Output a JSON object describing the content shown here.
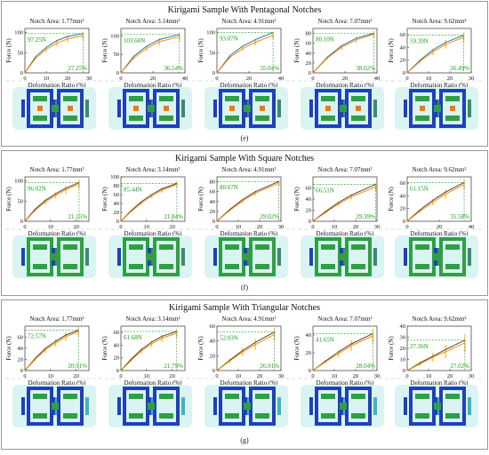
{
  "colors": {
    "line_model": "#1f77b4",
    "line_exp": "#ff8c00",
    "errorbar": "#ffbf47",
    "annotation": "#1a9e1a",
    "fem_bg": "#d9f4f2",
    "fem_green": "#2ea043",
    "fem_blue": "#1f3fbf",
    "fem_orange": "#f07a10",
    "fem_cyan": "#3bb6c2",
    "fem_teal": "#3a8c6e"
  },
  "common": {
    "xlabel": "Deformation Ratio (%)",
    "ylabel": "Force (N)"
  },
  "panels": [
    {
      "title": "Kirigami Sample With Pentagonal Notches",
      "label": "(e)"
    },
    {
      "title": "Kirigami Sample With Square Notches",
      "label": "(f)"
    },
    {
      "title": "Kirigami Sample With Triangular Notches",
      "label": "(g)"
    }
  ],
  "chart_data": [
    {
      "type": "line",
      "notch": "Notch Area: 1.77mm²",
      "force_label": "97.25N",
      "ratio_label": "27.25%",
      "xlim": [
        0,
        30
      ],
      "ylim": [
        0,
        110
      ],
      "xticks": [
        0,
        10,
        20,
        30
      ],
      "yticks": [
        0,
        50,
        100
      ],
      "x": [
        0,
        5,
        10,
        15,
        20,
        27.25
      ],
      "series": [
        {
          "values": [
            0,
            40,
            63,
            80,
            90,
            97.25
          ]
        },
        {
          "values": [
            0,
            36,
            58,
            74,
            84,
            92
          ]
        }
      ],
      "err": [
        0,
        3,
        6,
        8,
        9,
        10
      ],
      "diff_color": false,
      "fem": "pent1"
    },
    {
      "type": "line",
      "notch": "Notch Area: 3.14mm²",
      "force_label": "103.60N",
      "ratio_label": "36.54%",
      "xlim": [
        0,
        40
      ],
      "ylim": [
        0,
        120
      ],
      "xticks": [
        0,
        20,
        40
      ],
      "yticks": [
        0,
        50,
        100
      ],
      "x": [
        0,
        8,
        16,
        24,
        36.54
      ],
      "series": [
        {
          "values": [
            0,
            45,
            72,
            90,
            103.6
          ]
        },
        {
          "values": [
            0,
            40,
            66,
            84,
            98
          ]
        }
      ],
      "err": [
        0,
        4,
        7,
        9,
        11
      ],
      "diff_color": false,
      "fem": "pent2"
    },
    {
      "type": "line",
      "notch": "Notch Area: 4.91mm²",
      "force_label": "93.07N",
      "ratio_label": "35.04%",
      "xlim": [
        0,
        40
      ],
      "ylim": [
        0,
        110
      ],
      "xticks": [
        0,
        20,
        40
      ],
      "yticks": [
        0,
        50,
        100
      ],
      "x": [
        0,
        8,
        16,
        24,
        35.04
      ],
      "series": [
        {
          "values": [
            0,
            42,
            66,
            82,
            100
          ]
        },
        {
          "values": [
            0,
            38,
            60,
            76,
            93.07
          ]
        }
      ],
      "err": [
        0,
        3,
        6,
        8,
        9
      ],
      "diff_color": false,
      "fem": "pent3"
    },
    {
      "type": "line",
      "notch": "Notch Area: 7.07mm²",
      "force_label": "80.10N",
      "ratio_label": "38.02%",
      "xlim": [
        0,
        40
      ],
      "ylim": [
        0,
        90
      ],
      "xticks": [
        0,
        20,
        40
      ],
      "yticks": [
        0,
        20,
        40,
        60,
        80
      ],
      "x": [
        0,
        9,
        18,
        27,
        38.02
      ],
      "series": [
        {
          "values": [
            0,
            32,
            55,
            70,
            80.1
          ]
        },
        {
          "values": [
            0,
            30,
            52,
            67,
            78
          ]
        }
      ],
      "err": [
        0,
        3,
        5,
        6,
        7
      ],
      "diff_color": false,
      "fem": "pent4"
    },
    {
      "type": "line",
      "notch": "Notch Area: 9.62mm²",
      "force_label": "59.39N",
      "ratio_label": "26.49%",
      "xlim": [
        0,
        30
      ],
      "ylim": [
        0,
        70
      ],
      "xticks": [
        0,
        10,
        20,
        30
      ],
      "yticks": [
        0,
        20,
        40,
        60
      ],
      "x": [
        0,
        6,
        12,
        18,
        26.49
      ],
      "series": [
        {
          "values": [
            0,
            20,
            36,
            48,
            59.39
          ]
        },
        {
          "values": [
            0,
            18,
            33,
            45,
            56
          ]
        }
      ],
      "err": [
        0,
        3,
        5,
        7,
        8
      ],
      "diff_color": false,
      "fem": "pent5"
    },
    {
      "type": "line",
      "notch": "Notch Area: 1.77mm²",
      "force_label": "96.02N",
      "ratio_label": "21.15%",
      "xlim": [
        0,
        25
      ],
      "ylim": [
        0,
        110
      ],
      "xticks": [
        0,
        10,
        20
      ],
      "yticks": [
        0,
        50,
        100
      ],
      "x": [
        0,
        4,
        8,
        12,
        16,
        21.15
      ],
      "series": [
        {
          "values": [
            0,
            30,
            52,
            68,
            82,
            96.02
          ]
        },
        {
          "values": [
            0,
            27,
            48,
            64,
            78,
            92
          ]
        }
      ],
      "err": [
        0,
        3,
        6,
        8,
        10,
        11
      ],
      "diff_color": true,
      "fem": "sq1"
    },
    {
      "type": "line",
      "notch": "Notch Area: 3.14mm²",
      "force_label": "85.44N",
      "ratio_label": "21.84%",
      "xlim": [
        0,
        25
      ],
      "ylim": [
        0,
        100
      ],
      "xticks": [
        0,
        10,
        20
      ],
      "yticks": [
        0,
        20,
        40,
        60,
        80,
        100
      ],
      "x": [
        0,
        4,
        8,
        12,
        16,
        21.84
      ],
      "series": [
        {
          "values": [
            0,
            24,
            44,
            60,
            73,
            85.44
          ]
        },
        {
          "values": [
            0,
            22,
            41,
            57,
            70,
            83
          ]
        }
      ],
      "err": [
        0,
        2,
        4,
        5,
        6,
        7
      ],
      "diff_color": true,
      "fem": "sq2"
    },
    {
      "type": "line",
      "notch": "Notch Area: 4.91mm²",
      "force_label": "80.67N",
      "ratio_label": "29.02%",
      "xlim": [
        0,
        30
      ],
      "ylim": [
        0,
        90
      ],
      "xticks": [
        0,
        10,
        20,
        30
      ],
      "yticks": [
        0,
        20,
        40,
        60,
        80
      ],
      "x": [
        0,
        6,
        12,
        18,
        29.02
      ],
      "series": [
        {
          "values": [
            0,
            24,
            44,
            60,
            80.67
          ]
        },
        {
          "values": [
            0,
            22,
            41,
            57,
            77
          ]
        }
      ],
      "err": [
        0,
        2,
        4,
        5,
        6
      ],
      "diff_color": true,
      "fem": "sq3"
    },
    {
      "type": "line",
      "notch": "Notch Area: 7.07mm²",
      "force_label": "66.51N",
      "ratio_label": "29.39%",
      "xlim": [
        0,
        30
      ],
      "ylim": [
        0,
        80
      ],
      "xticks": [
        0,
        10,
        20,
        30
      ],
      "yticks": [
        0,
        20,
        40,
        60
      ],
      "x": [
        0,
        6,
        12,
        18,
        29.39
      ],
      "series": [
        {
          "values": [
            0,
            18,
            34,
            47,
            66.51
          ]
        },
        {
          "values": [
            0,
            16,
            31,
            44,
            62
          ]
        }
      ],
      "err": [
        0,
        2,
        4,
        5,
        7
      ],
      "diff_color": true,
      "fem": "sq4"
    },
    {
      "type": "line",
      "notch": "Notch Area: 9.62mm²",
      "force_label": "61.15N",
      "ratio_label": "35.58%",
      "xlim": [
        0,
        40
      ],
      "ylim": [
        0,
        70
      ],
      "xticks": [
        0,
        20,
        40
      ],
      "yticks": [
        0,
        20,
        40,
        60
      ],
      "x": [
        0,
        8,
        16,
        24,
        35.58
      ],
      "series": [
        {
          "values": [
            0,
            18,
            33,
            46,
            61.15
          ]
        },
        {
          "values": [
            0,
            16,
            30,
            43,
            58
          ]
        }
      ],
      "err": [
        0,
        3,
        5,
        7,
        8
      ],
      "diff_color": true,
      "fem": "sq5"
    },
    {
      "type": "line",
      "notch": "Notch Area: 1.77mm²",
      "force_label": "72.57N",
      "ratio_label": "20.91%",
      "xlim": [
        0,
        25
      ],
      "ylim": [
        0,
        80
      ],
      "xticks": [
        0,
        10,
        20
      ],
      "yticks": [
        0,
        20,
        40,
        60
      ],
      "x": [
        0,
        4,
        8,
        12,
        16,
        20.91
      ],
      "series": [
        {
          "values": [
            0,
            22,
            40,
            53,
            64,
            72.57
          ]
        },
        {
          "values": [
            0,
            20,
            37,
            50,
            61,
            70
          ]
        }
      ],
      "err": [
        0,
        3,
        5,
        7,
        8,
        9
      ],
      "diff_color": true,
      "fem": "tri1"
    },
    {
      "type": "line",
      "notch": "Notch Area: 3.14mm²",
      "force_label": "61.68N",
      "ratio_label": "21.79%",
      "xlim": [
        0,
        25
      ],
      "ylim": [
        0,
        70
      ],
      "xticks": [
        0,
        10,
        20
      ],
      "yticks": [
        0,
        20,
        40,
        60
      ],
      "x": [
        0,
        4,
        8,
        12,
        16,
        21.79
      ],
      "series": [
        {
          "values": [
            0,
            18,
            33,
            45,
            54,
            61.68
          ]
        },
        {
          "values": [
            0,
            16,
            31,
            42,
            51,
            59
          ]
        }
      ],
      "err": [
        0,
        2,
        4,
        5,
        6,
        7
      ],
      "diff_color": true,
      "fem": "tri2"
    },
    {
      "type": "line",
      "notch": "Notch Area: 4.91mm²",
      "force_label": "52.03N",
      "ratio_label": "26.91%",
      "xlim": [
        0,
        30
      ],
      "ylim": [
        0,
        60
      ],
      "xticks": [
        0,
        10,
        20,
        30
      ],
      "yticks": [
        0,
        20,
        40,
        60
      ],
      "x": [
        0,
        6,
        12,
        18,
        26.91
      ],
      "series": [
        {
          "values": [
            0,
            14,
            27,
            38,
            52.03
          ]
        },
        {
          "values": [
            0,
            13,
            25,
            35,
            49
          ]
        }
      ],
      "err": [
        0,
        3,
        5,
        7,
        9
      ],
      "diff_color": true,
      "fem": "tri3"
    },
    {
      "type": "line",
      "notch": "Notch Area: 7.07mm²",
      "force_label": "41.65N",
      "ratio_label": "28.04%",
      "xlim": [
        0,
        30
      ],
      "ylim": [
        0,
        50
      ],
      "xticks": [
        0,
        10,
        20,
        30
      ],
      "yticks": [
        0,
        20,
        40
      ],
      "x": [
        0,
        6,
        12,
        18,
        28.04
      ],
      "series": [
        {
          "values": [
            0,
            11,
            21,
            30,
            41.65
          ]
        },
        {
          "values": [
            0,
            10,
            19,
            28,
            39
          ]
        }
      ],
      "err": [
        0,
        2,
        4,
        6,
        8
      ],
      "diff_color": true,
      "fem": "tri4"
    },
    {
      "type": "line",
      "notch": "Notch Area: 9.62mm²",
      "force_label": "27.36N",
      "ratio_label": "27.02%",
      "xlim": [
        0,
        30
      ],
      "ylim": [
        0,
        40
      ],
      "xticks": [
        0,
        10,
        20,
        30
      ],
      "yticks": [
        0,
        10,
        20,
        30,
        40
      ],
      "x": [
        0,
        6,
        12,
        18,
        27.02
      ],
      "series": [
        {
          "values": [
            0,
            7,
            13,
            19,
            27.36
          ]
        },
        {
          "values": [
            0,
            6,
            12,
            17,
            25
          ]
        }
      ],
      "err": [
        0,
        2,
        4,
        6,
        8
      ],
      "diff_color": true,
      "fem": "tri5"
    }
  ]
}
